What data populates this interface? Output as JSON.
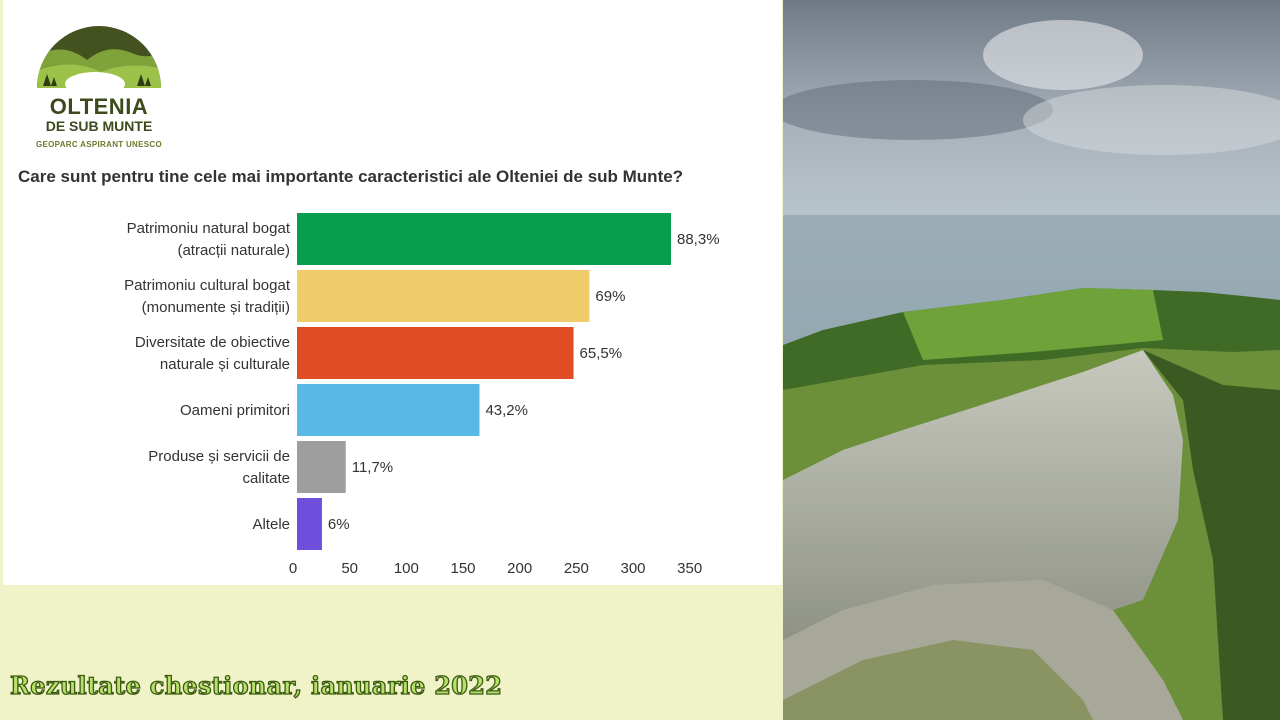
{
  "logo": {
    "line1": "OLTENIA",
    "line2": "DE SUB MUNTE",
    "line3": "GEOPARC ASPIRANT UNESCO"
  },
  "question": "Care sunt pentru tine cele mai importante caracteristici ale Olteniei de sub Munte?",
  "footer": "Rezultate chestionar, ianuarie 2022",
  "colors": {
    "background": "#f0f2c8",
    "footer_text": "#b7e06a"
  },
  "chart_data": {
    "type": "bar",
    "orientation": "horizontal",
    "categories": [
      [
        "Patrimoniu natural bogat",
        "(atracții naturale)"
      ],
      [
        "Patrimoniu cultural bogat",
        "(monumente și tradiții)"
      ],
      [
        "Diversitate de obiective",
        "naturale și culturale"
      ],
      [
        "Oameni primitori"
      ],
      [
        "Produse și servicii de",
        "calitate"
      ],
      [
        "Altele"
      ]
    ],
    "values": [
      330,
      258,
      244,
      161,
      43,
      22
    ],
    "data_labels": [
      "88,3%",
      "69%",
      "65,5%",
      "43,2%",
      "11,7%",
      "6%"
    ],
    "bar_colors": [
      "#079e4d",
      "#efcb6a",
      "#e04c24",
      "#5ab8e6",
      "#9e9e9e",
      "#6d4fdc"
    ],
    "x_ticks": [
      0,
      50,
      100,
      150,
      200,
      250,
      300,
      350
    ],
    "xlim": [
      0,
      350
    ],
    "grid": false,
    "legend": "none"
  },
  "photo": {
    "description_icon": "mountain-landscape-image"
  }
}
